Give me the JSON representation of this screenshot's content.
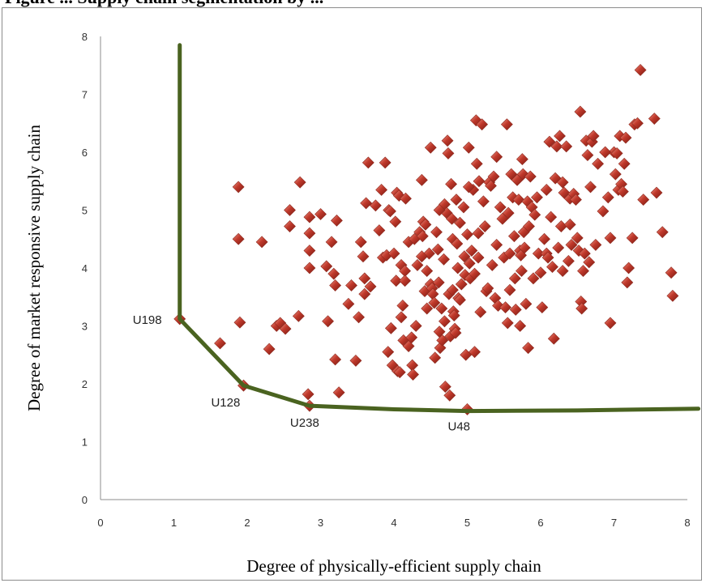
{
  "title": "Figure ... Supply chain segmentation by ...",
  "chart_data": {
    "type": "scatter",
    "xlabel": "Degree of physically-efficient supply chain",
    "ylabel": "Degree of market responsive supply chain",
    "xlim": [
      0,
      8
    ],
    "ylim": [
      0,
      8
    ],
    "x_ticks": [
      "0",
      "1",
      "2",
      "3",
      "4",
      "5",
      "6",
      "7",
      "8"
    ],
    "y_ticks": [
      "0",
      "1",
      "2",
      "3",
      "4",
      "5",
      "6",
      "7",
      "8"
    ],
    "grid": false,
    "marker_color": "#c0392b",
    "frontier_color": "#4a6320",
    "frontier": {
      "x": [
        1.08,
        1.08,
        1.08,
        1.95,
        2.85,
        4.0,
        5.0,
        6.5,
        8.15
      ],
      "y": [
        7.85,
        5.0,
        3.12,
        1.97,
        1.62,
        1.56,
        1.53,
        1.54,
        1.57
      ]
    },
    "annotations": [
      {
        "label": "U198",
        "x": 1.08,
        "y": 3.12
      },
      {
        "label": "U128",
        "x": 1.95,
        "y": 1.97
      },
      {
        "label": "U238",
        "x": 2.85,
        "y": 1.62
      },
      {
        "label": "U48",
        "x": 5.0,
        "y": 1.56
      }
    ],
    "series": [
      {
        "points": [
          [
            1.08,
            3.12
          ],
          [
            1.63,
            2.7
          ],
          [
            1.88,
            5.4
          ],
          [
            1.88,
            4.5
          ],
          [
            1.9,
            3.06
          ],
          [
            1.95,
            1.97
          ],
          [
            2.2,
            4.45
          ],
          [
            2.3,
            2.6
          ],
          [
            2.4,
            3.0
          ],
          [
            2.45,
            3.05
          ],
          [
            2.52,
            2.95
          ],
          [
            2.58,
            5.0
          ],
          [
            2.58,
            4.72
          ],
          [
            2.7,
            3.17
          ],
          [
            2.72,
            5.48
          ],
          [
            2.83,
            1.82
          ],
          [
            2.85,
            1.62
          ],
          [
            2.85,
            4.88
          ],
          [
            2.85,
            4.6
          ],
          [
            2.85,
            4.3
          ],
          [
            2.85,
            4.0
          ],
          [
            3.0,
            4.93
          ],
          [
            3.08,
            4.03
          ],
          [
            3.15,
            4.45
          ],
          [
            3.18,
            3.9
          ],
          [
            3.2,
            3.7
          ],
          [
            3.2,
            2.42
          ],
          [
            3.22,
            4.82
          ],
          [
            3.25,
            1.85
          ],
          [
            3.38,
            3.38
          ],
          [
            3.42,
            3.7
          ],
          [
            3.48,
            2.4
          ],
          [
            3.52,
            3.15
          ],
          [
            3.55,
            4.45
          ],
          [
            3.58,
            4.2
          ],
          [
            3.6,
            3.82
          ],
          [
            3.6,
            3.55
          ],
          [
            3.62,
            5.12
          ],
          [
            3.65,
            5.82
          ],
          [
            3.68,
            3.68
          ],
          [
            3.8,
            4.65
          ],
          [
            3.83,
            5.35
          ],
          [
            3.85,
            4.18
          ],
          [
            3.88,
            5.82
          ],
          [
            3.9,
            4.22
          ],
          [
            3.92,
            2.55
          ],
          [
            3.93,
            5.0
          ],
          [
            3.95,
            4.98
          ],
          [
            3.96,
            2.96
          ],
          [
            3.98,
            2.32
          ],
          [
            4.0,
            4.25
          ],
          [
            4.02,
            4.8
          ],
          [
            4.03,
            3.78
          ],
          [
            4.04,
            5.3
          ],
          [
            4.05,
            2.22
          ],
          [
            4.07,
            5.25
          ],
          [
            4.08,
            2.2
          ],
          [
            4.1,
            4.05
          ],
          [
            4.12,
            3.35
          ],
          [
            4.13,
            2.75
          ],
          [
            4.15,
            3.95
          ],
          [
            4.15,
            3.78
          ],
          [
            4.16,
            5.2
          ],
          [
            4.2,
            4.45
          ],
          [
            4.2,
            2.65
          ],
          [
            4.24,
            2.8
          ],
          [
            4.25,
            2.32
          ],
          [
            4.26,
            2.16
          ],
          [
            4.28,
            4.5
          ],
          [
            4.3,
            3.0
          ],
          [
            4.32,
            4.05
          ],
          [
            4.35,
            4.62
          ],
          [
            4.38,
            5.52
          ],
          [
            4.39,
            4.55
          ],
          [
            4.4,
            4.8
          ],
          [
            4.42,
            3.6
          ],
          [
            4.43,
            4.75
          ],
          [
            4.45,
            3.95
          ],
          [
            4.45,
            3.3
          ],
          [
            4.48,
            4.25
          ],
          [
            4.5,
            6.08
          ],
          [
            4.5,
            3.72
          ],
          [
            4.52,
            3.65
          ],
          [
            4.53,
            3.55
          ],
          [
            4.55,
            3.4
          ],
          [
            4.56,
            2.45
          ],
          [
            4.58,
            4.62
          ],
          [
            4.6,
            4.32
          ],
          [
            4.61,
            3.75
          ],
          [
            4.62,
            2.9
          ],
          [
            4.63,
            2.62
          ],
          [
            4.65,
            3.3
          ],
          [
            4.66,
            2.75
          ],
          [
            4.68,
            4.15
          ],
          [
            4.69,
            5.1
          ],
          [
            4.69,
            3.08
          ],
          [
            4.7,
            1.95
          ],
          [
            4.72,
            4.95
          ],
          [
            4.73,
            6.2
          ],
          [
            4.74,
            5.98
          ],
          [
            4.75,
            3.55
          ],
          [
            4.76,
            1.8
          ],
          [
            4.77,
            2.82
          ],
          [
            4.78,
            5.45
          ],
          [
            4.79,
            4.85
          ],
          [
            4.8,
            4.5
          ],
          [
            4.8,
            3.62
          ],
          [
            4.81,
            3.25
          ],
          [
            4.82,
            3.18
          ],
          [
            4.83,
            2.95
          ],
          [
            4.84,
            2.88
          ],
          [
            4.85,
            5.18
          ],
          [
            4.86,
            4.42
          ],
          [
            4.87,
            4.0
          ],
          [
            4.88,
            3.48
          ],
          [
            4.9,
            4.78
          ],
          [
            4.92,
            3.72
          ],
          [
            4.95,
            5.05
          ],
          [
            4.96,
            4.2
          ],
          [
            4.97,
            3.88
          ],
          [
            4.98,
            2.5
          ],
          [
            5.0,
            1.56
          ],
          [
            5.0,
            4.58
          ],
          [
            5.02,
            6.08
          ],
          [
            5.03,
            4.08
          ],
          [
            5.04,
            3.82
          ],
          [
            5.06,
            4.3
          ],
          [
            5.08,
            5.35
          ],
          [
            5.1,
            3.9
          ],
          [
            5.1,
            2.55
          ],
          [
            5.12,
            6.55
          ],
          [
            5.13,
            5.8
          ],
          [
            5.15,
            4.18
          ],
          [
            5.16,
            5.5
          ],
          [
            5.18,
            3.24
          ],
          [
            5.2,
            6.48
          ],
          [
            5.22,
            5.15
          ],
          [
            5.24,
            4.72
          ],
          [
            5.26,
            3.6
          ],
          [
            5.28,
            3.65
          ],
          [
            5.3,
            5.48
          ],
          [
            5.32,
            5.42
          ],
          [
            5.34,
            4.05
          ],
          [
            5.36,
            5.58
          ],
          [
            5.38,
            3.48
          ],
          [
            5.4,
            4.4
          ],
          [
            5.42,
            3.35
          ],
          [
            5.45,
            5.05
          ],
          [
            5.48,
            4.85
          ],
          [
            5.5,
            4.18
          ],
          [
            5.52,
            3.32
          ],
          [
            5.54,
            6.48
          ],
          [
            5.55,
            3.05
          ],
          [
            5.56,
            4.95
          ],
          [
            5.58,
            3.62
          ],
          [
            5.6,
            5.62
          ],
          [
            5.62,
            5.22
          ],
          [
            5.64,
            4.55
          ],
          [
            5.65,
            3.82
          ],
          [
            5.66,
            3.28
          ],
          [
            5.68,
            5.52
          ],
          [
            5.7,
            5.18
          ],
          [
            5.72,
            4.3
          ],
          [
            5.73,
            4.22
          ],
          [
            5.74,
            3.95
          ],
          [
            5.75,
            5.88
          ],
          [
            5.76,
            5.62
          ],
          [
            5.77,
            4.62
          ],
          [
            5.78,
            4.35
          ],
          [
            5.8,
            3.38
          ],
          [
            5.82,
            5.15
          ],
          [
            5.83,
            2.62
          ],
          [
            5.84,
            4.72
          ],
          [
            5.86,
            5.58
          ],
          [
            5.88,
            5.05
          ],
          [
            5.9,
            3.82
          ],
          [
            5.92,
            4.92
          ],
          [
            5.95,
            5.22
          ],
          [
            5.97,
            4.25
          ],
          [
            6.0,
            3.92
          ],
          [
            6.02,
            3.32
          ],
          [
            6.05,
            4.5
          ],
          [
            6.08,
            4.25
          ],
          [
            6.1,
            4.18
          ],
          [
            6.12,
            6.18
          ],
          [
            6.14,
            4.88
          ],
          [
            6.16,
            4.02
          ],
          [
            6.18,
            2.78
          ],
          [
            6.2,
            5.55
          ],
          [
            6.22,
            6.1
          ],
          [
            6.24,
            4.35
          ],
          [
            6.26,
            6.28
          ],
          [
            6.28,
            4.72
          ],
          [
            6.3,
            5.48
          ],
          [
            6.32,
            5.3
          ],
          [
            6.35,
            6.1
          ],
          [
            6.38,
            4.12
          ],
          [
            6.4,
            5.2
          ],
          [
            6.42,
            4.4
          ],
          [
            6.45,
            5.28
          ],
          [
            6.48,
            5.18
          ],
          [
            6.5,
            4.52
          ],
          [
            6.52,
            4.3
          ],
          [
            6.54,
            6.7
          ],
          [
            6.55,
            3.42
          ],
          [
            6.56,
            3.3
          ],
          [
            6.58,
            3.95
          ],
          [
            6.6,
            4.25
          ],
          [
            6.62,
            6.2
          ],
          [
            6.64,
            5.95
          ],
          [
            6.66,
            4.1
          ],
          [
            6.68,
            5.4
          ],
          [
            6.7,
            6.18
          ],
          [
            6.72,
            6.28
          ],
          [
            6.75,
            4.4
          ],
          [
            6.78,
            5.8
          ],
          [
            6.92,
            5.22
          ],
          [
            6.95,
            4.52
          ],
          [
            7.0,
            6.0
          ],
          [
            7.02,
            5.62
          ],
          [
            7.04,
            5.98
          ],
          [
            7.06,
            5.35
          ],
          [
            7.08,
            6.28
          ],
          [
            7.1,
            5.45
          ],
          [
            7.12,
            5.32
          ],
          [
            7.14,
            5.8
          ],
          [
            7.16,
            6.25
          ],
          [
            7.18,
            3.75
          ],
          [
            7.2,
            4.0
          ],
          [
            7.25,
            4.52
          ],
          [
            7.28,
            6.48
          ],
          [
            7.32,
            6.5
          ],
          [
            7.36,
            7.42
          ],
          [
            7.4,
            5.18
          ],
          [
            7.55,
            6.58
          ],
          [
            7.58,
            5.3
          ],
          [
            7.66,
            4.62
          ],
          [
            7.78,
            3.92
          ],
          [
            7.8,
            3.52
          ],
          [
            6.88,
            6.0
          ],
          [
            6.08,
            5.35
          ],
          [
            5.4,
            5.92
          ],
          [
            5.02,
            5.4
          ],
          [
            4.62,
            5.0
          ],
          [
            4.9,
            3.45
          ],
          [
            5.72,
            3.0
          ],
          [
            6.3,
            3.95
          ],
          [
            6.4,
            4.75
          ],
          [
            5.58,
            4.25
          ],
          [
            5.15,
            4.6
          ],
          [
            4.38,
            4.2
          ],
          [
            4.1,
            3.15
          ],
          [
            3.75,
            5.08
          ],
          [
            3.1,
            3.08
          ],
          [
            6.85,
            4.98
          ],
          [
            6.95,
            3.05
          ]
        ]
      }
    ]
  }
}
